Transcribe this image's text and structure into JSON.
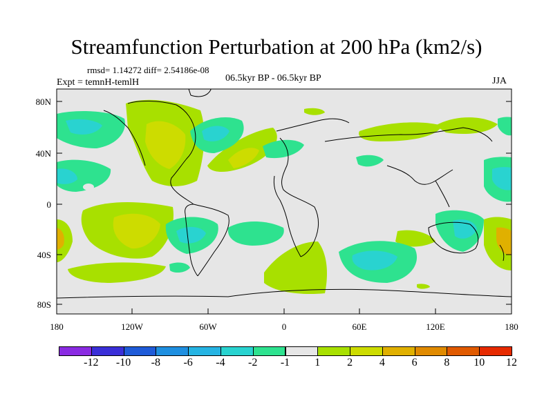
{
  "title": "Streamfunction Perturbation at 200 hPa (km2/s)",
  "stats": "rmsd= 1.14272 diff= 2.54186e-08",
  "experiment": "Expt = temnH-temlH",
  "period": "06.5kyr BP - 06.5kyr BP",
  "season": "JJA",
  "axes": {
    "y_ticks": [
      "80N",
      "40N",
      "0",
      "40S",
      "80S"
    ],
    "x_ticks": [
      "180",
      "120W",
      "60W",
      "0",
      "60E",
      "120E",
      "180"
    ]
  },
  "colorbar": {
    "colors": [
      "#8a2be2",
      "#3a2fd8",
      "#1f5bd8",
      "#1f8fe0",
      "#26b4e3",
      "#29d3d0",
      "#2ee28f",
      "#e6e6e6",
      "#a8e000",
      "#cddc00",
      "#e0b000",
      "#e08a00",
      "#e05a00",
      "#e62a00"
    ],
    "labels": [
      "-12",
      "-10",
      "-8",
      "-6",
      "-4",
      "-2",
      "-1",
      "1",
      "2",
      "4",
      "6",
      "8",
      "10",
      "12"
    ]
  }
}
